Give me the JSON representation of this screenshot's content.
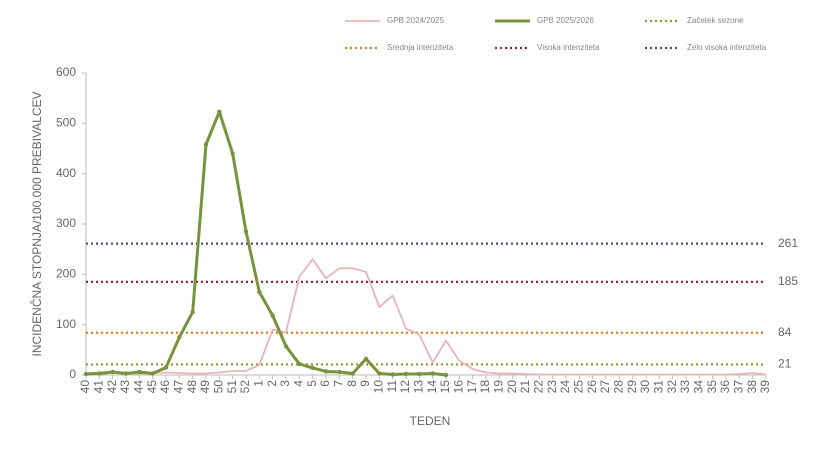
{
  "chart_data": {
    "type": "line",
    "y_label": "INCIDENČNA  STOPNJA/100.000  PREBIVALCEV",
    "x_label": "TEDEN",
    "categories": [
      "40",
      "41",
      "42",
      "43",
      "44",
      "45",
      "46",
      "47",
      "48",
      "49",
      "50",
      "51",
      "52",
      "1",
      "2",
      "3",
      "4",
      "5",
      "6",
      "7",
      "8",
      "9",
      "10",
      "11",
      "12",
      "13",
      "14",
      "15",
      "16",
      "17",
      "18",
      "19",
      "20",
      "21",
      "22",
      "23",
      "24",
      "25",
      "26",
      "27",
      "28",
      "29",
      "30",
      "31",
      "32",
      "33",
      "34",
      "35",
      "36",
      "37",
      "38",
      "39"
    ],
    "series": [
      {
        "name": "GPB 2024/2025",
        "color": "#e8b4b8",
        "markers": false,
        "values": [
          3,
          5,
          5,
          3,
          3,
          4,
          5,
          4,
          3,
          3,
          5,
          8,
          8,
          20,
          90,
          85,
          195,
          230,
          192,
          212,
          212,
          205,
          135,
          158,
          92,
          80,
          25,
          68,
          28,
          12,
          5,
          3,
          3,
          2,
          1,
          1,
          1,
          1,
          1,
          1,
          1,
          1,
          1,
          1,
          1,
          1,
          1,
          1,
          1,
          2,
          4,
          1
        ]
      },
      {
        "name": "GPB 2025/2026",
        "color": "#77933c",
        "markers": true,
        "values": [
          2,
          3,
          6,
          3,
          6,
          3,
          15,
          75,
          125,
          458,
          523,
          440,
          285,
          165,
          118,
          57,
          22,
          14,
          7,
          6,
          3,
          32,
          3,
          1,
          2,
          2,
          3,
          0,
          null,
          null,
          null,
          null,
          null,
          null,
          null,
          null,
          null,
          null,
          null,
          null,
          null,
          null,
          null,
          null,
          null,
          null,
          null,
          null,
          null,
          null,
          null,
          null
        ]
      }
    ],
    "thresholds": [
      {
        "name": "Začetek sezone",
        "color": "#8a9a2e",
        "value": 21
      },
      {
        "name": "Srednja intenziteta",
        "color": "#e07b20",
        "value": 84
      },
      {
        "name": "Visoka intenziteta",
        "color": "#8b2a3a",
        "value": 185
      },
      {
        "name": "Zelo visoka intenziteta",
        "color": "#4a4a80",
        "value": 261
      }
    ],
    "ylim": [
      0,
      600
    ],
    "yticks": [
      0,
      100,
      200,
      300,
      400,
      500,
      600
    ]
  }
}
